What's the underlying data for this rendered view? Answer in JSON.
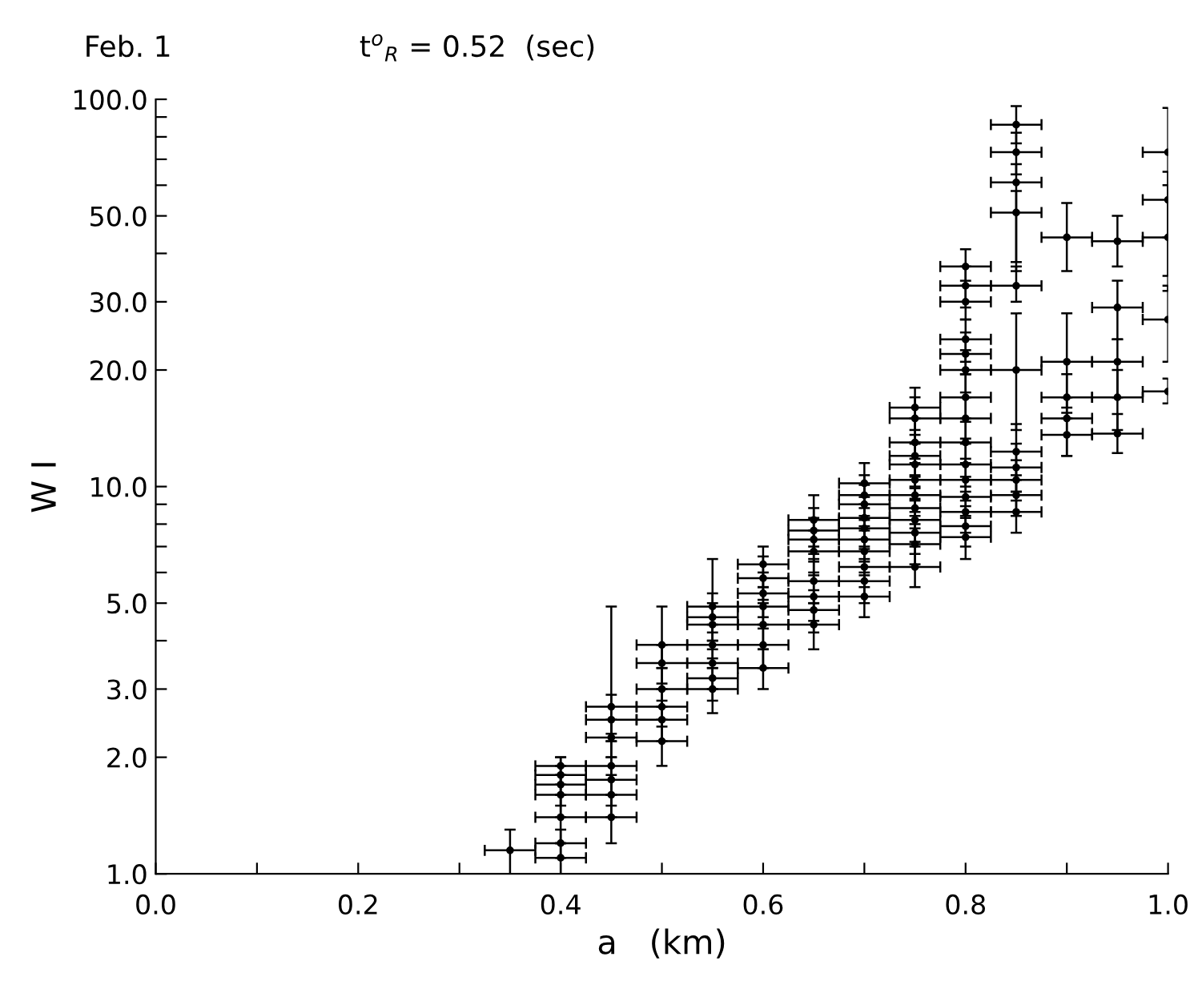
{
  "chart_data": {
    "type": "scatter",
    "title": "Feb. 1",
    "subtitle": "t$^{o}$$_{R}$ = 0.52  (sec)",
    "xlabel": "a   (km)",
    "ylabel": "W I",
    "log": "y",
    "grid": false,
    "marker": "circle",
    "xlim": [
      0.0,
      1.0
    ],
    "ylim": [
      1.0,
      100.0
    ],
    "xticks": [
      {
        "value": 0.0,
        "label": "0.0"
      },
      {
        "value": 0.1,
        "label": null
      },
      {
        "value": 0.2,
        "label": "0.2"
      },
      {
        "value": 0.3,
        "label": null
      },
      {
        "value": 0.4,
        "label": "0.4"
      },
      {
        "value": 0.5,
        "label": null
      },
      {
        "value": 0.6,
        "label": "0.6"
      },
      {
        "value": 0.7,
        "label": null
      },
      {
        "value": 0.8,
        "label": "0.8"
      },
      {
        "value": 0.9,
        "label": null
      },
      {
        "value": 1.0,
        "label": "1.0"
      }
    ],
    "yticks": [
      {
        "value": 1,
        "label": "1.0"
      },
      {
        "value": 2,
        "label": "2.0"
      },
      {
        "value": 3,
        "label": "3.0"
      },
      {
        "value": 4,
        "label": null
      },
      {
        "value": 5,
        "label": "5.0"
      },
      {
        "value": 6,
        "label": null
      },
      {
        "value": 7,
        "label": null
      },
      {
        "value": 8,
        "label": null
      },
      {
        "value": 9,
        "label": null
      },
      {
        "value": 10,
        "label": "10.0"
      },
      {
        "value": 20,
        "label": "20.0"
      },
      {
        "value": 30,
        "label": "30.0"
      },
      {
        "value": 40,
        "label": null
      },
      {
        "value": 50,
        "label": "50.0"
      },
      {
        "value": 60,
        "label": null
      },
      {
        "value": 70,
        "label": null
      },
      {
        "value": 80,
        "label": null
      },
      {
        "value": 90,
        "label": null
      },
      {
        "value": 100,
        "label": "100.0"
      }
    ],
    "series": [
      {
        "color": "#000000",
        "x": [
          0.35,
          0.4,
          0.4,
          0.4,
          0.4,
          0.4,
          0.4,
          0.4,
          0.45,
          0.45,
          0.45,
          0.45,
          0.45,
          0.45,
          0.45,
          0.5,
          0.5,
          0.5,
          0.5,
          0.5,
          0.5,
          0.55,
          0.55,
          0.55,
          0.55,
          0.55,
          0.55,
          0.55,
          0.6,
          0.6,
          0.6,
          0.6,
          0.6,
          0.6,
          0.6,
          0.65,
          0.65,
          0.65,
          0.65,
          0.65,
          0.65,
          0.65,
          0.65,
          0.7,
          0.7,
          0.7,
          0.7,
          0.7,
          0.7,
          0.7,
          0.7,
          0.7,
          0.7,
          0.75,
          0.75,
          0.75,
          0.75,
          0.75,
          0.75,
          0.75,
          0.75,
          0.75,
          0.75,
          0.75,
          0.75,
          0.8,
          0.8,
          0.8,
          0.8,
          0.8,
          0.8,
          0.8,
          0.8,
          0.8,
          0.8,
          0.8,
          0.8,
          0.8,
          0.8,
          0.8,
          0.85,
          0.85,
          0.85,
          0.85,
          0.85,
          0.85,
          0.85,
          0.85,
          0.85,
          0.85,
          0.85,
          0.9,
          0.9,
          0.9,
          0.9,
          0.9,
          0.95,
          0.95,
          0.95,
          0.95,
          0.95,
          1.0,
          1.0,
          1.0,
          1.0,
          1.0
        ],
        "values": [
          1.15,
          1.9,
          1.8,
          1.7,
          1.6,
          1.4,
          1.2,
          1.1,
          2.7,
          2.5,
          2.25,
          1.9,
          1.75,
          1.6,
          1.4,
          3.9,
          3.5,
          3.0,
          2.7,
          2.5,
          2.2,
          4.9,
          4.6,
          4.4,
          3.9,
          3.5,
          3.2,
          3.0,
          6.3,
          5.8,
          5.3,
          4.9,
          4.4,
          3.9,
          3.4,
          8.2,
          7.7,
          7.3,
          6.8,
          5.7,
          5.2,
          4.8,
          4.4,
          10.2,
          9.5,
          9.0,
          8.3,
          7.8,
          7.3,
          6.8,
          6.2,
          5.7,
          5.2,
          16,
          15,
          13,
          12,
          11.4,
          10.4,
          9.5,
          8.8,
          8.2,
          7.6,
          7.1,
          6.2,
          37,
          33,
          30,
          24,
          22,
          20,
          17,
          15,
          13,
          11.4,
          10.4,
          9.4,
          8.6,
          7.9,
          7.4,
          86,
          73,
          61,
          51,
          33,
          20,
          12.3,
          11.2,
          10.4,
          9.5,
          8.6,
          44,
          21,
          17,
          15,
          13.6,
          43,
          29,
          21,
          17,
          13.7,
          73,
          55,
          44,
          27,
          17.6
        ],
        "errors": [
          [
            1.0,
            1.3
          ],
          [
            1.7,
            2.0
          ],
          [
            1.6,
            2.0
          ],
          [
            1.5,
            1.9
          ],
          [
            1.4,
            1.8
          ],
          [
            1.2,
            1.6
          ],
          [
            1.1,
            1.3
          ],
          [
            1.0,
            1.2
          ],
          [
            2.3,
            4.9
          ],
          [
            2.2,
            2.9
          ],
          [
            2.0,
            2.5
          ],
          [
            1.6,
            2.2
          ],
          [
            1.5,
            2.0
          ],
          [
            1.4,
            1.8
          ],
          [
            1.2,
            1.6
          ],
          [
            3.4,
            4.9
          ],
          [
            3.1,
            3.9
          ],
          [
            2.7,
            3.4
          ],
          [
            2.4,
            3.0
          ],
          [
            2.2,
            2.8
          ],
          [
            1.9,
            2.5
          ],
          [
            4.2,
            6.5
          ],
          [
            4.0,
            5.3
          ],
          [
            3.8,
            5.0
          ],
          [
            3.4,
            4.4
          ],
          [
            3.0,
            4.0
          ],
          [
            2.8,
            3.6
          ],
          [
            2.6,
            3.4
          ],
          [
            5.5,
            7.0
          ],
          [
            5.1,
            6.6
          ],
          [
            4.6,
            6.0
          ],
          [
            4.3,
            5.5
          ],
          [
            3.8,
            5.0
          ],
          [
            3.4,
            4.4
          ],
          [
            3.0,
            3.8
          ],
          [
            7.0,
            9.5
          ],
          [
            6.7,
            8.8
          ],
          [
            6.4,
            8.3
          ],
          [
            5.9,
            7.7
          ],
          [
            5.0,
            6.5
          ],
          [
            4.5,
            6.0
          ],
          [
            4.2,
            5.4
          ],
          [
            3.8,
            5.0
          ],
          [
            9.0,
            11.5
          ],
          [
            8.4,
            10.7
          ],
          [
            7.9,
            10.1
          ],
          [
            7.3,
            9.4
          ],
          [
            6.9,
            8.8
          ],
          [
            6.4,
            8.2
          ],
          [
            6.0,
            7.7
          ],
          [
            5.5,
            7.0
          ],
          [
            5.0,
            6.5
          ],
          [
            4.6,
            5.9
          ],
          [
            14,
            18
          ],
          [
            13,
            17
          ],
          [
            11.5,
            15
          ],
          [
            10.6,
            13.6
          ],
          [
            10.0,
            12.9
          ],
          [
            9.2,
            11.8
          ],
          [
            8.4,
            10.7
          ],
          [
            7.8,
            9.9
          ],
          [
            7.2,
            9.3
          ],
          [
            6.7,
            8.6
          ],
          [
            6.3,
            8.0
          ],
          [
            5.5,
            7.0
          ],
          [
            33,
            41
          ],
          [
            29,
            37
          ],
          [
            27,
            34
          ],
          [
            21,
            27
          ],
          [
            19.5,
            25
          ],
          [
            17.5,
            22.5
          ],
          [
            15,
            19.5
          ],
          [
            13.3,
            17
          ],
          [
            11.5,
            14.7
          ],
          [
            10,
            12.9
          ],
          [
            9.2,
            11.8
          ],
          [
            8.3,
            10.6
          ],
          [
            7.6,
            9.7
          ],
          [
            7.0,
            8.9
          ],
          [
            6.5,
            8.4
          ],
          [
            77,
            96
          ],
          [
            64,
            82
          ],
          [
            38,
            68
          ],
          [
            36,
            58
          ],
          [
            30,
            37
          ],
          [
            14,
            28
          ],
          [
            10.4,
            14.5
          ],
          [
            9.7,
            12.9
          ],
          [
            9.2,
            11.7
          ],
          [
            8.4,
            10.7
          ],
          [
            7.6,
            9.7
          ],
          [
            36,
            54
          ],
          [
            16,
            28
          ],
          [
            15,
            19.5
          ],
          [
            12,
            17
          ],
          [
            12,
            15.5
          ],
          [
            37,
            50
          ],
          [
            24,
            34
          ],
          [
            17,
            24
          ],
          [
            14,
            20
          ],
          [
            12.2,
            15.4
          ],
          [
            44,
            95
          ],
          [
            35,
            65
          ],
          [
            32,
            60
          ],
          [
            21,
            33
          ],
          [
            16.4,
            19
          ]
        ],
        "xerrors": [
          0.025,
          0.025,
          0.025,
          0.025,
          0.025,
          0.025,
          0.025,
          0.025,
          0.025,
          0.025,
          0.025,
          0.025,
          0.025,
          0.025,
          0.025,
          0.025,
          0.025,
          0.025,
          0.025,
          0.025,
          0.025,
          0.025,
          0.025,
          0.025,
          0.025,
          0.025,
          0.025,
          0.025,
          0.025,
          0.025,
          0.025,
          0.025,
          0.025,
          0.025,
          0.025,
          0.025,
          0.025,
          0.025,
          0.025,
          0.025,
          0.025,
          0.025,
          0.025,
          0.025,
          0.025,
          0.025,
          0.025,
          0.025,
          0.025,
          0.025,
          0.025,
          0.025,
          0.025,
          0.025,
          0.025,
          0.025,
          0.025,
          0.025,
          0.025,
          0.025,
          0.025,
          0.025,
          0.025,
          0.025,
          0.025,
          0.025,
          0.025,
          0.025,
          0.025,
          0.025,
          0.025,
          0.025,
          0.025,
          0.025,
          0.025,
          0.025,
          0.025,
          0.025,
          0.025,
          0.025,
          0.025,
          0.025,
          0.025,
          0.025,
          0.025,
          0.025,
          0.025,
          0.025,
          0.025,
          0.025,
          0.025,
          0.025,
          0.025,
          0.025,
          0.025,
          0.025,
          0.025,
          0.025,
          0.025,
          0.025,
          0.025,
          0.025,
          0.025,
          0.025,
          0.025,
          0.025
        ]
      }
    ]
  }
}
